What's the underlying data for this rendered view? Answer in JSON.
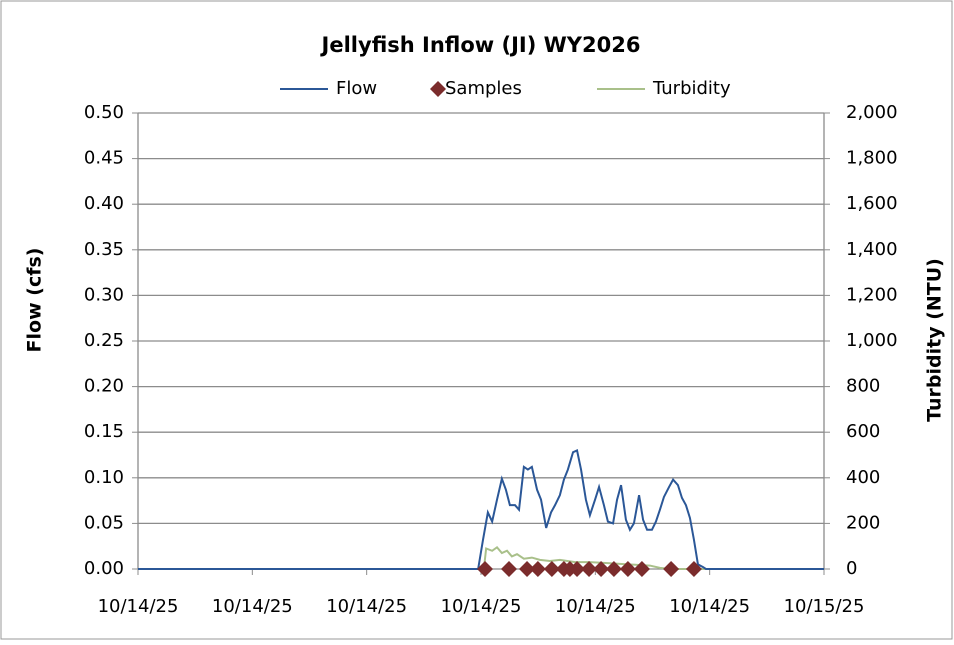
{
  "chart_data": {
    "type": "line",
    "title": "Jellyfish Inflow (JI) WY2026",
    "ylabel": "Flow (cfs)",
    "y2label": "Turbidity (NTU)",
    "legend": "top",
    "grid": true,
    "xlim": [
      0,
      24
    ],
    "xticks": [
      {
        "value": 0,
        "label": "10/14/25"
      },
      {
        "value": 4,
        "label": "10/14/25"
      },
      {
        "value": 8,
        "label": "10/14/25"
      },
      {
        "value": 12,
        "label": "10/14/25"
      },
      {
        "value": 16,
        "label": "10/14/25"
      },
      {
        "value": 20,
        "label": "10/14/25"
      },
      {
        "value": 24,
        "label": "10/15/25"
      }
    ],
    "ylim": [
      0,
      0.5
    ],
    "yticks": [
      {
        "value": 0,
        "label": "0.00"
      },
      {
        "value": 0.05,
        "label": "0.05"
      },
      {
        "value": 0.1,
        "label": "0.10"
      },
      {
        "value": 0.15,
        "label": "0.15"
      },
      {
        "value": 0.2,
        "label": "0.20"
      },
      {
        "value": 0.25,
        "label": "0.25"
      },
      {
        "value": 0.3,
        "label": "0.30"
      },
      {
        "value": 0.35,
        "label": "0.35"
      },
      {
        "value": 0.4,
        "label": "0.40"
      },
      {
        "value": 0.45,
        "label": "0.45"
      },
      {
        "value": 0.5,
        "label": "0.50"
      }
    ],
    "y2lim": [
      0,
      2000
    ],
    "y2ticks": [
      0,
      200,
      400,
      600,
      800,
      {
        "value": 1000,
        "label": "1,000"
      },
      {
        "value": 1200,
        "label": "1,200"
      },
      {
        "value": 1400,
        "label": "1,400"
      },
      {
        "value": 1600,
        "label": "1,600"
      },
      {
        "value": 1800,
        "label": "1,800"
      },
      {
        "value": 2000,
        "label": "2,000"
      }
    ],
    "series": [
      {
        "name": "Flow",
        "color": "#2b5797",
        "style": "line",
        "x": [
          0,
          11.9,
          12.07,
          12.24,
          12.39,
          12.56,
          12.73,
          12.87,
          13.01,
          13.19,
          13.33,
          13.5,
          13.64,
          13.78,
          13.96,
          14.1,
          14.28,
          14.45,
          14.59,
          14.76,
          14.9,
          15.04,
          15.22,
          15.36,
          15.5,
          15.67,
          15.81,
          15.99,
          16.13,
          16.3,
          16.44,
          16.62,
          16.76,
          16.9,
          17.07,
          17.21,
          17.35,
          17.53,
          17.67,
          17.81,
          17.98,
          18.12,
          18.26,
          18.4,
          18.58,
          18.72,
          18.89,
          19.03,
          19.17,
          19.31,
          19.45,
          19.59,
          19.77,
          19.87,
          24
        ],
        "values": [
          0,
          0,
          0.032,
          0.062,
          0.052,
          0.076,
          0.099,
          0.087,
          0.07,
          0.07,
          0.065,
          0.112,
          0.109,
          0.112,
          0.087,
          0.076,
          0.045,
          0.062,
          0.07,
          0.081,
          0.098,
          0.109,
          0.128,
          0.13,
          0.109,
          0.076,
          0.059,
          0.076,
          0.09,
          0.07,
          0.052,
          0.05,
          0.076,
          0.092,
          0.054,
          0.043,
          0.05,
          0.081,
          0.054,
          0.043,
          0.043,
          0.052,
          0.065,
          0.079,
          0.09,
          0.098,
          0.092,
          0.078,
          0.07,
          0.056,
          0.032,
          0.005,
          0.002,
          0,
          0
        ]
      },
      {
        "name": "Samples",
        "color": "#7b2c2c",
        "style": "markers",
        "x": [
          12.14,
          12.98,
          13.61,
          13.99,
          14.48,
          14.9,
          15.11,
          15.36,
          15.78,
          16.2,
          16.65,
          17.14,
          17.63,
          18.65,
          19.45
        ],
        "values": [
          0,
          0,
          0,
          0,
          0,
          0,
          0,
          0,
          0,
          0,
          0,
          0,
          0,
          0,
          0
        ]
      },
      {
        "name": "Turbidity",
        "color": "#a9c08a",
        "style": "line",
        "axis": "y2",
        "x": [
          0,
          12.1,
          12.18,
          12.39,
          12.56,
          12.73,
          12.91,
          13.08,
          13.26,
          13.5,
          13.78,
          14.06,
          14.41,
          14.76,
          15.29,
          15.81,
          16.51,
          17.21,
          17.91,
          18.26,
          18.61,
          24
        ],
        "values": [
          0,
          0,
          90,
          80,
          95,
          70,
          80,
          55,
          65,
          45,
          50,
          40,
          35,
          40,
          30,
          30,
          25,
          20,
          15,
          5,
          0,
          0
        ]
      }
    ]
  }
}
